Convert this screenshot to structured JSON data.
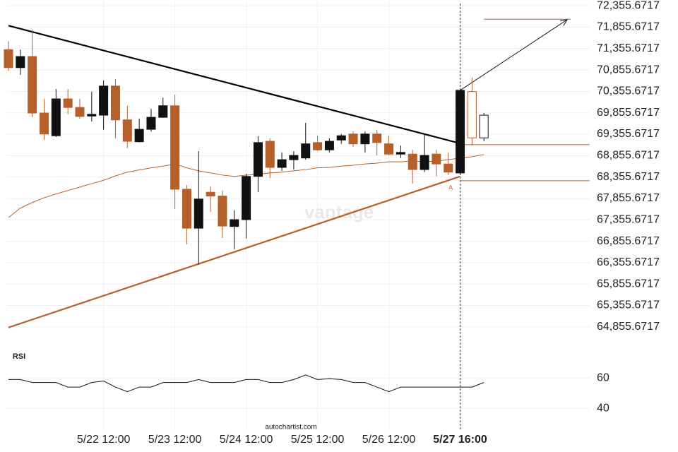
{
  "chart_data": {
    "type": "candlestick",
    "categories": [
      null,
      null,
      null,
      null,
      null,
      null,
      null,
      null,
      "5/22 12:00",
      null,
      null,
      null,
      null,
      null,
      "5/23 12:00",
      null,
      null,
      null,
      null,
      null,
      "5/24 12:00",
      null,
      null,
      null,
      null,
      null,
      "5/25 12:00",
      null,
      null,
      null,
      null,
      null,
      "5/26 12:00",
      null,
      null,
      null,
      null,
      null,
      "5/27 16:00",
      null,
      null
    ],
    "highlight_category": 38,
    "open": [
      71330,
      70910,
      71170,
      69850,
      69320,
      70180,
      69980,
      69780,
      69800,
      70480,
      69690,
      69180,
      69470,
      69750,
      70020,
      68070,
      67160,
      68000,
      67910,
      67200,
      67360,
      68370,
      69190,
      68580,
      68760,
      68800,
      69160,
      68990,
      69220,
      69360,
      69130,
      69360,
      69130,
      68890,
      68890,
      68530,
      68890,
      68660,
      68450,
      70350,
      69270
    ],
    "high": [
      71530,
      71330,
      71800,
      70180,
      70410,
      70410,
      70180,
      70350,
      70610,
      70640,
      70020,
      69720,
      69950,
      70210,
      70280,
      68170,
      68960,
      68140,
      68040,
      67580,
      68430,
      69310,
      69260,
      68930,
      68960,
      69620,
      69320,
      69260,
      69360,
      69420,
      69420,
      69460,
      69320,
      69090,
      68990,
      69360,
      68990,
      68930,
      70410,
      70680,
      69850
    ],
    "low": [
      70840,
      70740,
      69750,
      69220,
      69290,
      69820,
      69720,
      69650,
      69460,
      69260,
      69030,
      69160,
      69420,
      69740,
      67610,
      66780,
      66310,
      67540,
      66930,
      66670,
      66920,
      68000,
      68330,
      68500,
      68530,
      68760,
      68960,
      68930,
      69130,
      69060,
      68930,
      68860,
      68860,
      68800,
      68200,
      68470,
      68370,
      68400,
      68400,
      69090,
      69190
    ],
    "close": [
      70910,
      71170,
      69850,
      69360,
      70180,
      69980,
      69770,
      69820,
      70480,
      69690,
      69190,
      69470,
      69750,
      70020,
      68070,
      67160,
      67840,
      67910,
      67210,
      67360,
      68370,
      69160,
      68580,
      68760,
      68860,
      69130,
      68990,
      69190,
      69320,
      69130,
      69360,
      69160,
      68890,
      68930,
      68530,
      68860,
      68660,
      68470,
      70380,
      69270,
      69800
    ],
    "up_color": "#111111",
    "down_color": "#b5602b",
    "hollow_from": 39,
    "ma": {
      "color": "#b5602b",
      "values": [
        67410,
        67630,
        67760,
        67870,
        67960,
        68040,
        68120,
        68200,
        68280,
        68380,
        68470,
        68520,
        68570,
        68610,
        68660,
        68570,
        68500,
        68450,
        68400,
        68370,
        68400,
        68420,
        68450,
        68470,
        68500,
        68530,
        68570,
        68580,
        68610,
        68630,
        68660,
        68680,
        68710,
        68710,
        68730,
        68710,
        68730,
        68760,
        68800,
        68830,
        68880
      ]
    },
    "trendlines": [
      {
        "color": "#000000",
        "x": [
          0,
          38
        ],
        "values": [
          71890,
          69140
        ]
      },
      {
        "color": "#b5602b",
        "x": [
          0,
          38
        ],
        "values": [
          64840,
          68370
        ]
      }
    ],
    "levels": [
      {
        "color": "#b5602b",
        "x": [
          38,
          48.9
        ],
        "value": 69110
      },
      {
        "color": "#b5602b",
        "x": [
          38,
          48.9
        ],
        "value": 68270
      },
      {
        "color": "#b5602b",
        "x": [
          40,
          47.3
        ],
        "value": 72040
      }
    ],
    "arrow": {
      "x": [
        38,
        47
      ],
      "values": [
        70380,
        72030
      ]
    },
    "pattern_label": {
      "text": "A",
      "x": 37.2,
      "value": 68100
    },
    "ylim": [
      64440,
      72490
    ],
    "yticks": [
      {
        "value": 72355.6717,
        "label": "72,355.6717"
      },
      {
        "value": 71855.6717,
        "label": "71,855.6717"
      },
      {
        "value": 71355.6717,
        "label": "71,355.6717"
      },
      {
        "value": 70855.6717,
        "label": "70,855.6717"
      },
      {
        "value": 70355.6717,
        "label": "70,355.6717"
      },
      {
        "value": 69855.6717,
        "label": "69,855.6717"
      },
      {
        "value": 69355.6717,
        "label": "69,355.6717"
      },
      {
        "value": 68855.6717,
        "label": "68,855.6717"
      },
      {
        "value": 68355.6717,
        "label": "68,355.6717"
      },
      {
        "value": 67855.6717,
        "label": "67,855.6717"
      },
      {
        "value": 67355.6717,
        "label": "67,355.6717"
      },
      {
        "value": 66855.6717,
        "label": "66,855.6717"
      },
      {
        "value": 66355.6717,
        "label": "66,355.6717"
      },
      {
        "value": 65855.6717,
        "label": "65,855.6717"
      },
      {
        "value": 65355.6717,
        "label": "65,355.6717"
      },
      {
        "value": 64855.6717,
        "label": "64,855.6717"
      }
    ],
    "grid": true,
    "rsi": {
      "title": "RSI",
      "color": "#111111",
      "ylim": [
        27.5,
        75
      ],
      "yticks": [
        60,
        40
      ],
      "values": [
        59,
        59,
        57,
        57,
        57,
        54,
        54,
        57,
        58,
        54,
        51,
        54,
        54,
        57,
        57,
        57,
        59,
        57,
        57,
        57,
        59,
        59,
        57,
        57,
        59,
        62,
        59,
        59.5,
        59,
        57,
        57,
        54,
        51,
        54,
        54,
        54,
        54,
        54,
        54,
        54,
        57
      ]
    },
    "watermark": "vantage",
    "source": "autochartist.com"
  }
}
